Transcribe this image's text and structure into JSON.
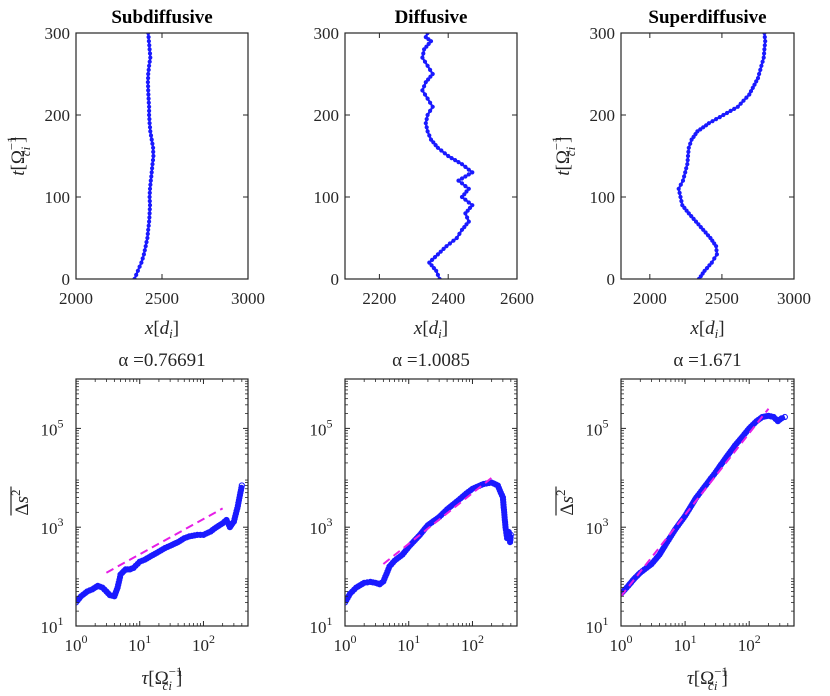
{
  "chart_data": [
    {
      "id": "p1",
      "type": "line",
      "title": "Subdiffusive",
      "xlabel": "x[d_i]",
      "ylabel": "t[Ω_ci^-1]",
      "xlim": [
        2000,
        3000
      ],
      "ylim": [
        0,
        300
      ],
      "xticks": [
        "2000",
        "2500",
        "3000"
      ],
      "xtick_values": [
        2000,
        2500,
        3000
      ],
      "yticks": [
        "0",
        "100",
        "200",
        "300"
      ],
      "ytick_values": [
        0,
        100,
        200,
        300
      ],
      "series": [
        {
          "name": "trajectory",
          "color": "#1a1aff",
          "marker": "dot",
          "x": [
            2340,
            2360,
            2380,
            2395,
            2405,
            2415,
            2420,
            2425,
            2428,
            2430,
            2428,
            2430,
            2435,
            2440,
            2445,
            2450,
            2448,
            2440,
            2432,
            2428,
            2425,
            2425,
            2422,
            2420,
            2418,
            2420,
            2425,
            2432,
            2428,
            2420
          ],
          "y": [
            0,
            10,
            20,
            30,
            40,
            50,
            60,
            70,
            80,
            90,
            100,
            110,
            120,
            130,
            140,
            150,
            160,
            170,
            180,
            190,
            200,
            210,
            220,
            230,
            240,
            250,
            260,
            270,
            280,
            300
          ]
        }
      ]
    },
    {
      "id": "p2",
      "type": "line",
      "title": "Diffusive",
      "xlabel": "x[d_i]",
      "ylabel": "",
      "xlim": [
        2100,
        2600
      ],
      "ylim": [
        0,
        300
      ],
      "xticks": [
        "2200",
        "2400",
        "2600"
      ],
      "xtick_values": [
        2200,
        2400,
        2600
      ],
      "yticks": [
        "0",
        "100",
        "200",
        "300"
      ],
      "ytick_values": [
        0,
        100,
        200,
        300
      ],
      "series": [
        {
          "name": "trajectory",
          "color": "#1a1aff",
          "marker": "dot",
          "x": [
            2375,
            2365,
            2345,
            2370,
            2395,
            2425,
            2440,
            2460,
            2450,
            2470,
            2440,
            2460,
            2430,
            2470,
            2440,
            2400,
            2370,
            2350,
            2340,
            2335,
            2340,
            2355,
            2340,
            2325,
            2335,
            2355,
            2340,
            2325,
            2330,
            2350,
            2335,
            2340
          ],
          "y": [
            0,
            10,
            20,
            30,
            40,
            50,
            60,
            70,
            80,
            90,
            100,
            110,
            120,
            130,
            140,
            150,
            160,
            170,
            180,
            190,
            200,
            210,
            220,
            230,
            240,
            250,
            260,
            270,
            280,
            290,
            295,
            300
          ]
        }
      ]
    },
    {
      "id": "p3",
      "type": "line",
      "title": "Superdiffusive",
      "xlabel": "x[d_i]",
      "ylabel": "t[Ω_ci^-1]",
      "xlim": [
        1800,
        3000
      ],
      "ylim": [
        0,
        300
      ],
      "xticks": [
        "2000",
        "2500",
        "3000"
      ],
      "xtick_values": [
        2000,
        2500,
        3000
      ],
      "yticks": [
        "0",
        "100",
        "200",
        "300"
      ],
      "ytick_values": [
        0,
        100,
        200,
        300
      ],
      "series": [
        {
          "name": "trajectory",
          "color": "#1a1aff",
          "marker": "dot",
          "x": [
            2340,
            2380,
            2430,
            2465,
            2460,
            2420,
            2370,
            2320,
            2270,
            2225,
            2200,
            2230,
            2260,
            2270,
            2290,
            2330,
            2410,
            2510,
            2610,
            2690,
            2750,
            2790,
            2800,
            2795
          ],
          "y": [
            0,
            10,
            20,
            30,
            40,
            50,
            60,
            70,
            80,
            90,
            110,
            120,
            140,
            160,
            170,
            180,
            190,
            200,
            210,
            225,
            245,
            270,
            290,
            300
          ]
        }
      ]
    },
    {
      "id": "p4",
      "type": "scatter",
      "title": "α =0.76691",
      "xlabel": "τ[Ω_ci^-1]",
      "ylabel": "Δs²",
      "xscale": "log",
      "yscale": "log",
      "xlim": [
        1,
        500
      ],
      "ylim": [
        10,
        1000000
      ],
      "xticks": [
        "1",
        "10",
        "100"
      ],
      "xtick_values": [
        1,
        10,
        100
      ],
      "yticks": [
        "1",
        "3",
        "5"
      ],
      "ytick_values": [
        10,
        1000,
        100000
      ],
      "series": [
        {
          "name": "data",
          "color": "#1a1aff",
          "marker": "circle",
          "x": [
            1,
            1.2,
            1.5,
            1.8,
            2.2,
            2.6,
            3,
            3.4,
            4,
            4.5,
            5,
            6,
            7,
            8,
            10,
            12,
            15,
            20,
            25,
            30,
            40,
            50,
            60,
            80,
            100,
            130,
            160,
            200,
            230,
            260,
            300,
            340,
            360,
            380,
            400
          ],
          "y": [
            30,
            40,
            50,
            55,
            65,
            60,
            50,
            42,
            40,
            60,
            110,
            140,
            140,
            150,
            200,
            220,
            260,
            320,
            380,
            420,
            500,
            600,
            650,
            700,
            700,
            820,
            1000,
            1200,
            1400,
            1000,
            1300,
            2400,
            3500,
            5000,
            7000
          ]
        },
        {
          "name": "fit",
          "color": "#e61ee6",
          "style": "dash",
          "x": [
            3,
            200
          ],
          "y": [
            120,
            2400
          ]
        }
      ]
    },
    {
      "id": "p5",
      "type": "scatter",
      "title": "α =1.0085",
      "xlabel": "",
      "ylabel": "",
      "xscale": "log",
      "yscale": "log",
      "xlim": [
        1,
        500
      ],
      "ylim": [
        10,
        1000000
      ],
      "xticks": [
        "1",
        "10",
        "100"
      ],
      "xtick_values": [
        1,
        10,
        100
      ],
      "yticks": [
        "1",
        "3",
        "5"
      ],
      "ytick_values": [
        10,
        1000,
        100000
      ],
      "series": [
        {
          "name": "data",
          "color": "#1a1aff",
          "marker": "circle",
          "x": [
            1,
            1.2,
            1.5,
            2,
            2.5,
            3,
            3.5,
            4,
            5,
            6,
            8,
            10,
            15,
            20,
            30,
            40,
            60,
            80,
            100,
            150,
            200,
            250,
            300,
            330,
            350,
            370,
            390,
            400
          ],
          "y": [
            30,
            45,
            60,
            75,
            78,
            75,
            70,
            80,
            160,
            210,
            280,
            400,
            700,
            1100,
            1600,
            2300,
            3500,
            4800,
            6000,
            7500,
            8000,
            7000,
            4000,
            1000,
            600,
            800,
            500,
            700
          ]
        },
        {
          "name": "fit",
          "color": "#e61ee6",
          "style": "dash",
          "x": [
            4,
            220
          ],
          "y": [
            180,
            11000
          ]
        }
      ]
    },
    {
      "id": "p6",
      "type": "scatter",
      "title": "α =1.671",
      "xlabel": "τ[Ω_ci^-1]",
      "ylabel": "Δs²",
      "xscale": "log",
      "yscale": "log",
      "xlim": [
        1,
        500
      ],
      "ylim": [
        10,
        1000000
      ],
      "xticks": [
        "1",
        "10",
        "100"
      ],
      "xtick_values": [
        1,
        10,
        100
      ],
      "yticks": [
        "1",
        "3",
        "5"
      ],
      "ytick_values": [
        10,
        1000,
        100000
      ],
      "series": [
        {
          "name": "data",
          "color": "#1a1aff",
          "marker": "circle",
          "x": [
            1,
            1.3,
            1.6,
            2,
            2.5,
            3,
            4,
            5,
            7,
            10,
            15,
            20,
            30,
            40,
            60,
            80,
            100,
            130,
            160,
            200,
            240,
            280,
            320,
            360
          ],
          "y": [
            45,
            65,
            90,
            120,
            150,
            180,
            280,
            450,
            900,
            1700,
            4000,
            6500,
            13000,
            22000,
            45000,
            70000,
            100000,
            140000,
            170000,
            180000,
            170000,
            140000,
            160000,
            170000
          ]
        },
        {
          "name": "fit",
          "color": "#e61ee6",
          "style": "dash",
          "x": [
            1,
            200
          ],
          "y": [
            40,
            250000
          ]
        }
      ]
    }
  ]
}
